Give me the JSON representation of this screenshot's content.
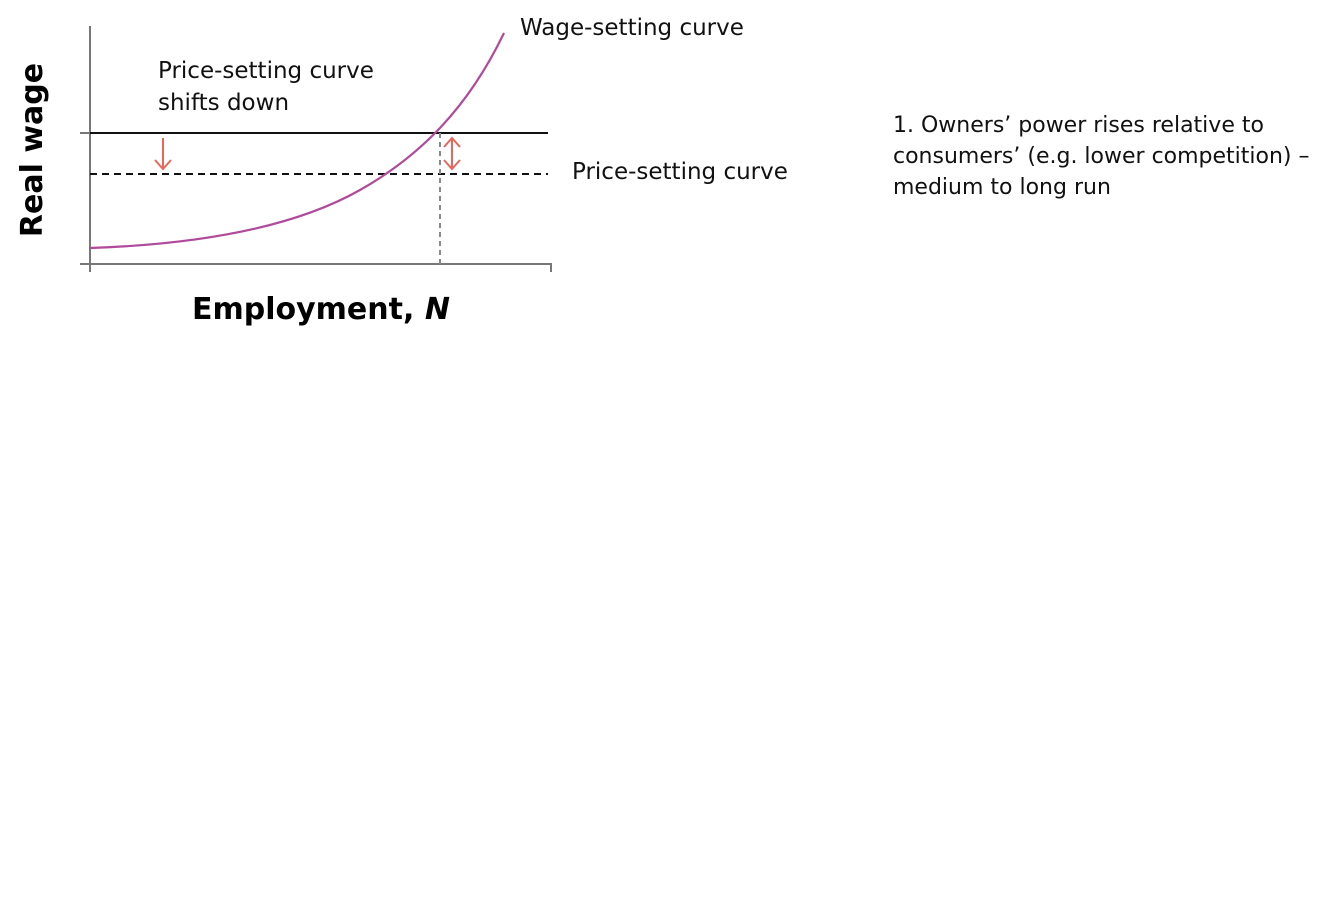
{
  "diagram": {
    "y_axis_label": "Real wage",
    "x_axis_label": "Employment, ",
    "x_axis_label_italic": "N",
    "wage_setting_label": "Wage-setting curve",
    "price_setting_label": "Price-setting curve",
    "shift_label_line1": "Price-setting curve",
    "shift_label_line2": "shifts down",
    "colors": {
      "wage_curve": "#b04a9a",
      "arrows": "#e8665a",
      "axes": "#777777",
      "price_line": "#111111",
      "guide": "#888888"
    }
  },
  "note": {
    "line1": "1. Owners’ power rises relative to",
    "line2": "consumers’ (e.g. lower competition) –",
    "line3": "medium to long run"
  }
}
